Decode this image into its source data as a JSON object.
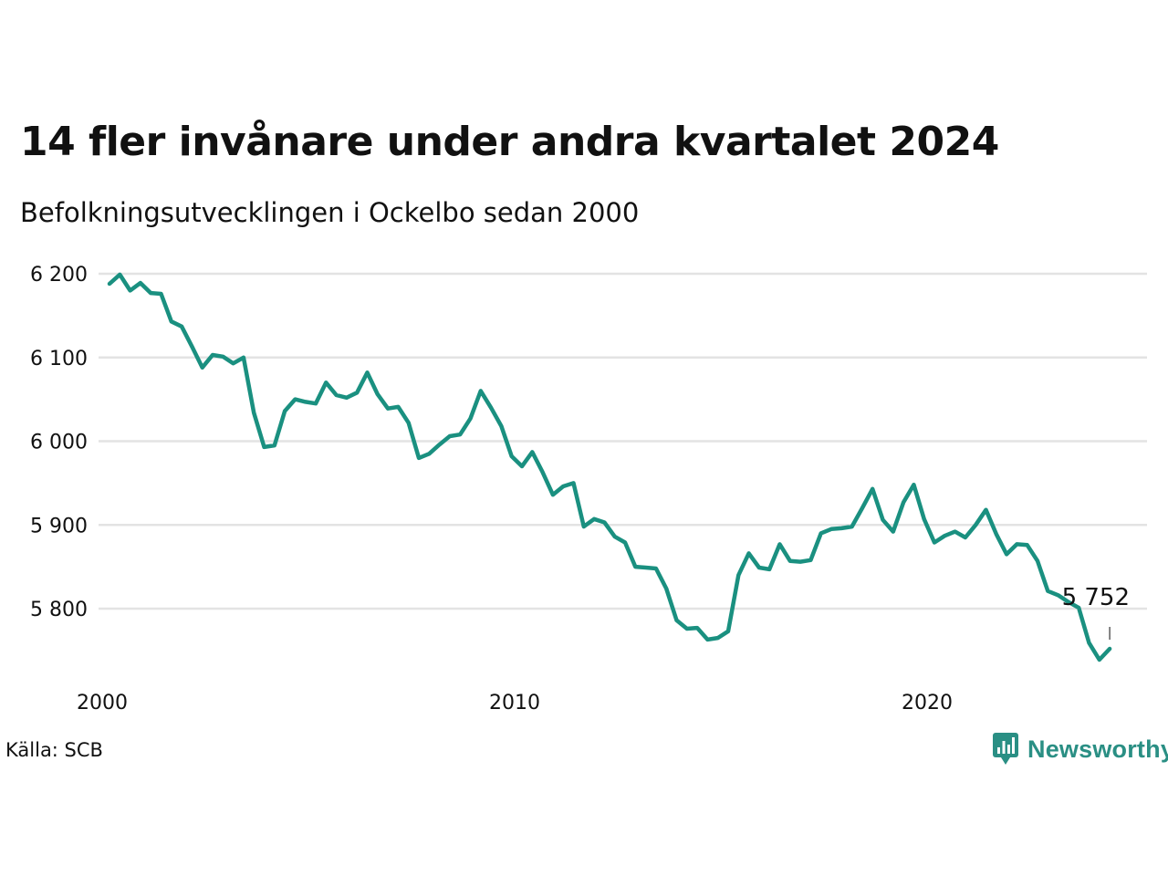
{
  "title": "14 fler invånare under andra kvartalet 2024",
  "subtitle": "Befolkningsutvecklingen i Ockelbo sedan 2000",
  "source": "Källa: SCB",
  "brand": {
    "name": "Newsworthy",
    "color": "#2a8f84",
    "icon": "chart-bubble-icon"
  },
  "colors": {
    "line": "#1a9080",
    "grid": "#e3e3e3",
    "text": "#111111"
  },
  "chart_data": {
    "type": "line",
    "title": "14 fler invånare under andra kvartalet 2024",
    "subtitle": "Befolkningsutvecklingen i Ockelbo sedan 2000",
    "xlabel": "",
    "ylabel": "",
    "ylim": [
      5730,
      6200
    ],
    "xlim": [
      2000,
      2024.5
    ],
    "y_ticks": [
      5800,
      5900,
      6000,
      6100,
      6200
    ],
    "y_tick_labels": [
      "5 800",
      "5 900",
      "6 000",
      "6 100",
      "6 200"
    ],
    "x_ticks": [
      2000,
      2010,
      2020
    ],
    "x_tick_labels": [
      "2000",
      "2010",
      "2020"
    ],
    "grid": true,
    "annotation": {
      "text": "5 752",
      "x": 2024.25,
      "y": 5752
    },
    "series": [
      {
        "x": [
          2000.0,
          2000.25,
          2000.5,
          2000.75,
          2001.0,
          2001.25,
          2001.5,
          2001.75,
          2002.0,
          2002.25,
          2002.5,
          2002.75,
          2003.0,
          2003.25,
          2003.5,
          2003.75,
          2004.0,
          2004.25,
          2004.5,
          2004.75,
          2005.0,
          2005.25,
          2005.5,
          2005.75,
          2006.0,
          2006.25,
          2006.5,
          2006.75,
          2007.0,
          2007.25,
          2007.5,
          2007.75,
          2008.0,
          2008.25,
          2008.5,
          2008.75,
          2009.0,
          2009.25,
          2009.5,
          2009.75,
          2010.0,
          2010.25,
          2010.5,
          2010.75,
          2011.0,
          2011.25,
          2011.5,
          2011.75,
          2012.0,
          2012.25,
          2012.5,
          2012.75,
          2013.0,
          2013.25,
          2013.5,
          2013.75,
          2014.0,
          2014.25,
          2014.5,
          2014.75,
          2015.0,
          2015.25,
          2015.5,
          2015.75,
          2016.0,
          2016.25,
          2016.5,
          2016.75,
          2017.0,
          2017.25,
          2017.5,
          2017.75,
          2018.0,
          2018.25,
          2018.5,
          2018.75,
          2019.0,
          2019.25,
          2019.5,
          2019.75,
          2020.0,
          2020.25,
          2020.5,
          2020.75,
          2021.0,
          2021.25,
          2021.5,
          2021.75,
          2022.0,
          2022.25,
          2022.5,
          2022.75,
          2023.0,
          2023.25,
          2023.5,
          2023.75,
          2024.0,
          2024.25
        ],
        "values": [
          6188,
          6199,
          6180,
          6189,
          6177,
          6176,
          6143,
          6137,
          6113,
          6088,
          6103,
          6101,
          6093,
          6100,
          6034,
          5993,
          5995,
          6036,
          6050,
          6047,
          6045,
          6070,
          6055,
          6052,
          6058,
          6082,
          6056,
          6039,
          6041,
          6022,
          5980,
          5985,
          5996,
          6006,
          6008,
          6027,
          6060,
          6040,
          6018,
          5982,
          5970,
          5987,
          5963,
          5936,
          5946,
          5950,
          5898,
          5907,
          5903,
          5886,
          5879,
          5850,
          5849,
          5848,
          5824,
          5786,
          5776,
          5777,
          5763,
          5765,
          5773,
          5840,
          5866,
          5849,
          5847,
          5877,
          5857,
          5856,
          5858,
          5890,
          5895,
          5896,
          5898,
          5920,
          5943,
          5906,
          5892,
          5927,
          5948,
          5907,
          5879,
          5887,
          5892,
          5885,
          5900,
          5918,
          5889,
          5865,
          5877,
          5876,
          5857,
          5821,
          5816,
          5808,
          5801,
          5759,
          5739,
          5752
        ]
      }
    ]
  }
}
